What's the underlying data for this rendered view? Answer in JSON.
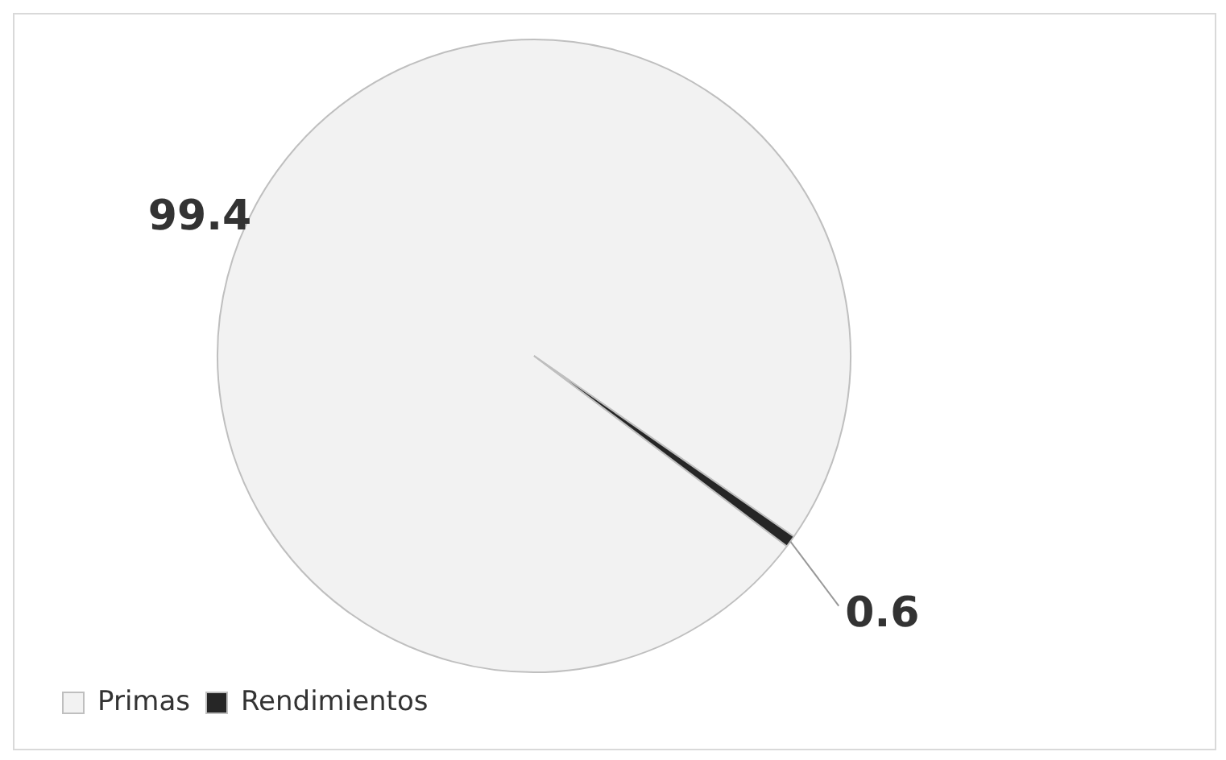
{
  "chart_data": {
    "type": "pie",
    "categories": [
      "Primas",
      "Rendimientos"
    ],
    "values": [
      99.4,
      0.6
    ],
    "colors": [
      "#f2f2f2",
      "#262626"
    ],
    "data_labels": true,
    "legend": "bottom left"
  }
}
